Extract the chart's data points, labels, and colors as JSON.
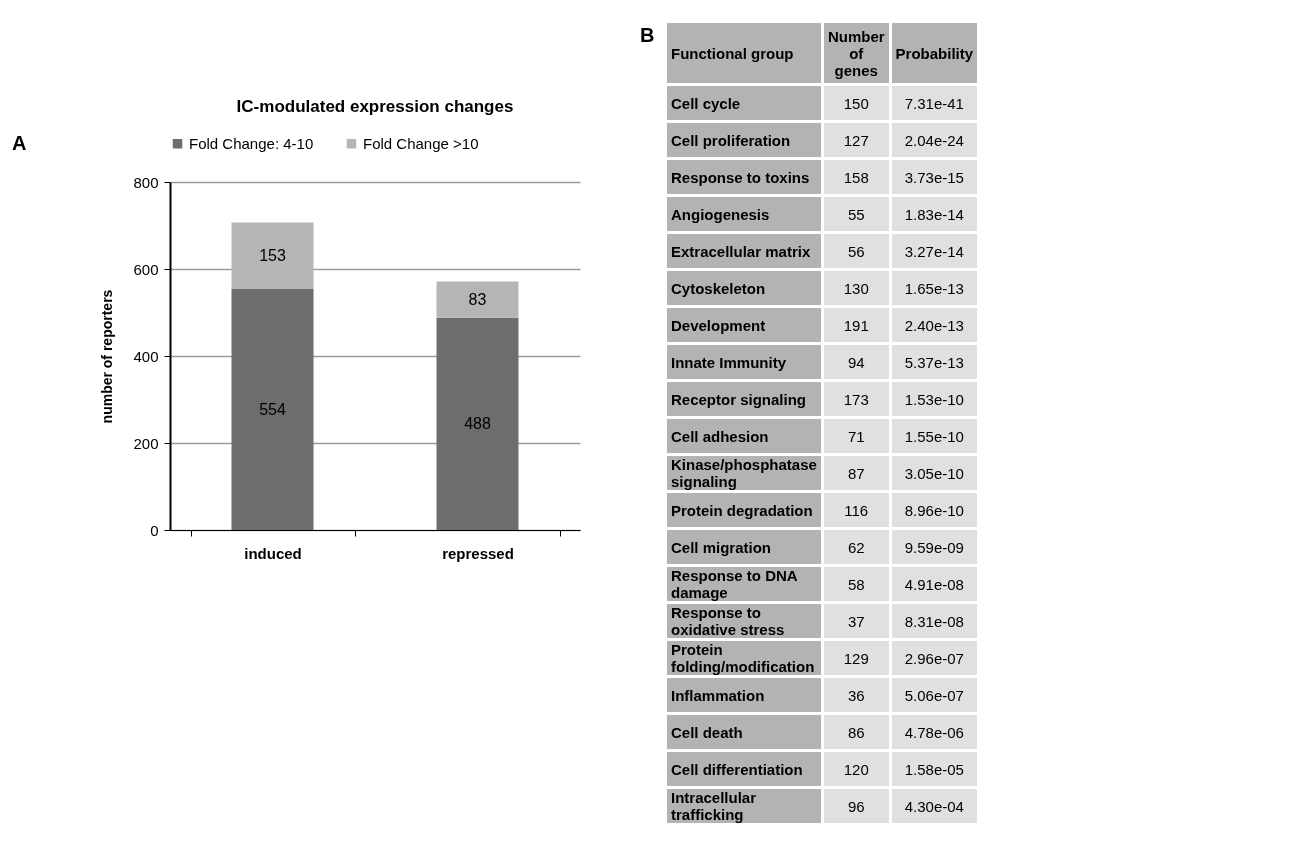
{
  "chart_data": [
    {
      "type": "bar",
      "title": "IC-modulated expression changes",
      "ylabel": "number of reporters",
      "annotations": [
        "A"
      ],
      "categories": [
        "induced",
        "repressed"
      ],
      "stacked": true,
      "data_labels": true,
      "grid": "y",
      "legend": "top",
      "ylim": [
        0,
        800
      ],
      "yticks": [
        0,
        200,
        400,
        600,
        800
      ],
      "series": [
        {
          "name": "Fold Change: 4-10",
          "color": "#6d6d6d",
          "values": [
            554,
            488
          ]
        },
        {
          "name": "Fold Change >10",
          "color": "#b5b5b5",
          "values": [
            153,
            83
          ]
        }
      ]
    },
    {
      "type": "other",
      "annotations": [
        "B"
      ],
      "ylabel": "Functional group",
      "categories": [
        "Number of genes",
        "Probability"
      ],
      "y_categories": [
        "Cell cycle",
        "Cell proliferation",
        "Response to toxins",
        "Angiogenesis",
        "Extracellular matrix",
        "Cytoskeleton",
        "Development",
        "Innate Immunity",
        "Receptor signaling",
        "Cell adhesion",
        "Kinase/phosphatase signaling",
        "Protein degradation",
        "Cell migration",
        "Response to DNA damage",
        "Response to oxidative stress",
        "Protein folding/modification",
        "Inflammation",
        "Cell death",
        "Cell differentiation",
        "Intracellular trafficking"
      ],
      "cell_labels": [
        [
          "150",
          "7.31e-41"
        ],
        [
          "127",
          "2.04e-24"
        ],
        [
          "158",
          "3.73e-15"
        ],
        [
          "55",
          "1.83e-14"
        ],
        [
          "56",
          "3.27e-14"
        ],
        [
          "130",
          "1.65e-13"
        ],
        [
          "191",
          "2.40e-13"
        ],
        [
          "94",
          "5.37e-13"
        ],
        [
          "173",
          "1.53e-10"
        ],
        [
          "71",
          "1.55e-10"
        ],
        [
          "87",
          "3.05e-10"
        ],
        [
          "116",
          "8.96e-10"
        ],
        [
          "62",
          "9.59e-09"
        ],
        [
          "58",
          "4.91e-08"
        ],
        [
          "37",
          "8.31e-08"
        ],
        [
          "129",
          "2.96e-07"
        ],
        [
          "36",
          "5.06e-07"
        ],
        [
          "86",
          "4.78e-06"
        ],
        [
          "120",
          "1.58e-05"
        ],
        [
          "96",
          "4.30e-04"
        ]
      ]
    }
  ]
}
